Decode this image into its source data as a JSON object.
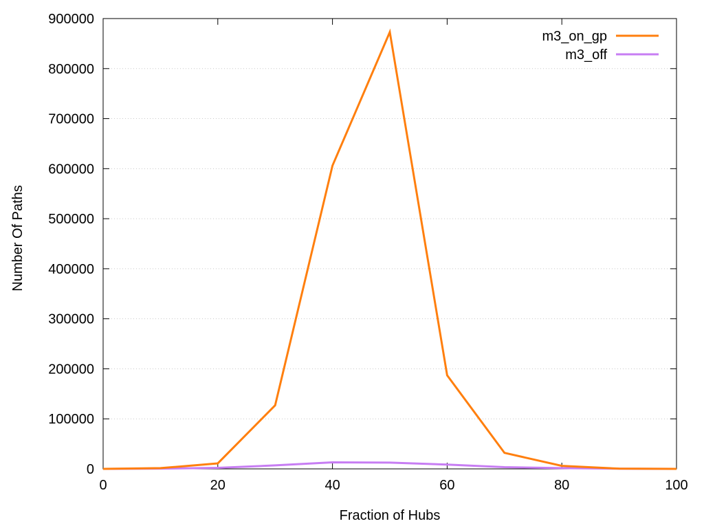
{
  "chart_data": {
    "type": "line",
    "title": "",
    "xlabel": "Fraction of Hubs",
    "ylabel": "Number Of Paths",
    "xlim": [
      0,
      100
    ],
    "ylim": [
      0,
      900000
    ],
    "xticks": [
      0,
      20,
      40,
      60,
      80,
      100
    ],
    "yticks": [
      0,
      100000,
      200000,
      300000,
      400000,
      500000,
      600000,
      700000,
      800000,
      900000
    ],
    "grid": "horizontal dotted",
    "legend_position": "top-right",
    "x": [
      0,
      10,
      20,
      30,
      40,
      50,
      60,
      70,
      80,
      90,
      100
    ],
    "series": [
      {
        "name": "m3_on_gp",
        "color": "#ff7f0e",
        "values": [
          0,
          1500,
          11000,
          127000,
          606000,
          873000,
          187000,
          32000,
          6000,
          500,
          0
        ]
      },
      {
        "name": "m3_off",
        "color": "#c77df3",
        "values": [
          0,
          500,
          2000,
          7000,
          13000,
          12500,
          8500,
          3500,
          1500,
          300,
          0
        ]
      }
    ]
  }
}
